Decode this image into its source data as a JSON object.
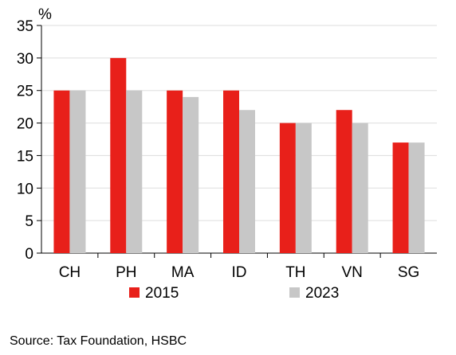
{
  "chart_data": {
    "type": "bar",
    "unit_label": "%",
    "categories": [
      "CH",
      "PH",
      "MA",
      "ID",
      "TH",
      "VN",
      "SG"
    ],
    "series": [
      {
        "name": "2015",
        "color": "#e8201a",
        "values": [
          25,
          30,
          25,
          25,
          20,
          22,
          17
        ]
      },
      {
        "name": "2023",
        "color": "#c7c7c7",
        "values": [
          25,
          25,
          24,
          22,
          20,
          20,
          17
        ]
      }
    ],
    "ylim": [
      0,
      35
    ],
    "yticks": [
      0,
      5,
      10,
      15,
      20,
      25,
      30,
      35
    ],
    "grid": true,
    "legend_position": "bottom"
  },
  "source": "Source: Tax Foundation, HSBC"
}
